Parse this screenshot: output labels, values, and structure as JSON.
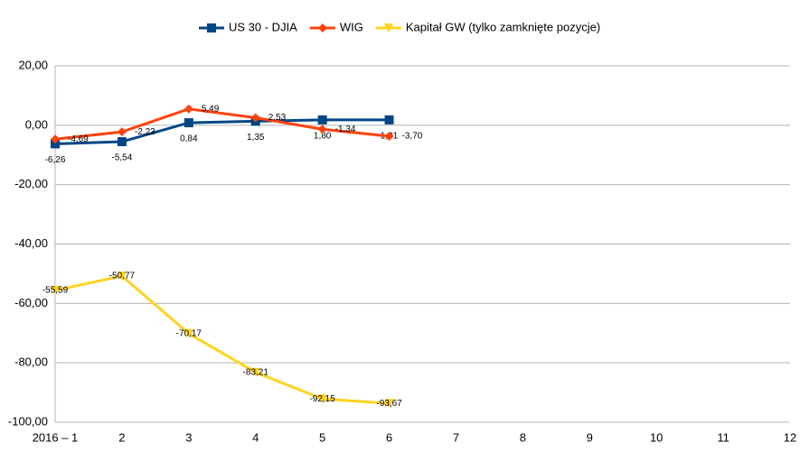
{
  "chart_data": {
    "type": "line",
    "categories": [
      "2016 – 1",
      "2",
      "3",
      "4",
      "5",
      "6",
      "7",
      "8",
      "9",
      "10",
      "11",
      "12"
    ],
    "series": [
      {
        "name": "US 30 - DJIA",
        "color": "#004586",
        "marker": "square",
        "values": [
          -6.26,
          -5.54,
          0.84,
          1.35,
          1.8,
          1.81,
          null,
          null,
          null,
          null,
          null,
          null
        ],
        "value_labels": [
          "-6,26",
          "-5,54",
          "0,84",
          "1,35",
          "1,80",
          "1,81",
          null,
          null,
          null,
          null,
          null,
          null
        ]
      },
      {
        "name": "WIG",
        "color": "#ff420e",
        "marker": "diamond",
        "values": [
          -4.69,
          -2.23,
          5.49,
          2.53,
          -1.34,
          -3.7,
          null,
          null,
          null,
          null,
          null,
          null
        ],
        "value_labels": [
          "-4,69",
          "-2,23",
          "5,49",
          "2,53",
          "-1,34",
          "-3,70",
          null,
          null,
          null,
          null,
          null,
          null
        ]
      },
      {
        "name": "Kapitał GW (tylko zamknięte pozycje)",
        "color": "#ffd320",
        "marker": "triangle-down",
        "values": [
          -55.59,
          -50.77,
          -70.17,
          -83.21,
          -92.15,
          -93.67,
          null,
          null,
          null,
          null,
          null,
          null
        ],
        "value_labels": [
          "-55,59",
          "-50,77",
          "-70,17",
          "-83,21",
          "-92,15",
          "-93,67",
          null,
          null,
          null,
          null,
          null,
          null
        ]
      }
    ],
    "ylim": [
      -100,
      20
    ],
    "yticks": [
      {
        "value": -100,
        "label": "-100,00"
      },
      {
        "value": -80,
        "label": "-80,00"
      },
      {
        "value": -60,
        "label": "-60,00"
      },
      {
        "value": -40,
        "label": "-40,00"
      },
      {
        "value": -20,
        "label": "-20,00"
      },
      {
        "value": 0,
        "label": "0,00"
      },
      {
        "value": 20,
        "label": "20,00"
      }
    ],
    "grid": true,
    "legend": "top"
  }
}
